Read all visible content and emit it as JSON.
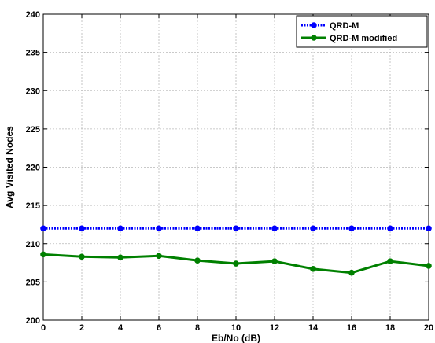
{
  "chart_data": {
    "type": "line",
    "xlabel": "Eb/No (dB)",
    "ylabel": "Avg Visited Nodes",
    "xlim": [
      0,
      20
    ],
    "ylim": [
      200,
      240
    ],
    "xticks": [
      0,
      2,
      4,
      6,
      8,
      10,
      12,
      14,
      16,
      18,
      20
    ],
    "yticks": [
      200,
      205,
      210,
      215,
      220,
      225,
      230,
      235,
      240
    ],
    "grid": true,
    "legend_position": "top-right",
    "x": [
      0,
      2,
      4,
      6,
      8,
      10,
      12,
      14,
      16,
      18,
      20
    ],
    "series": [
      {
        "name": "QRD-M",
        "color": "#0000ff",
        "line_style": "dotted",
        "marker": "circle",
        "values": [
          212,
          212,
          212,
          212,
          212,
          212,
          212,
          212,
          212,
          212,
          212
        ]
      },
      {
        "name": "QRD-M modified",
        "color": "#008000",
        "line_style": "solid",
        "marker": "circle",
        "values": [
          208.6,
          208.3,
          208.2,
          208.4,
          207.8,
          207.4,
          207.7,
          206.7,
          206.2,
          207.7,
          207.1
        ]
      }
    ]
  }
}
